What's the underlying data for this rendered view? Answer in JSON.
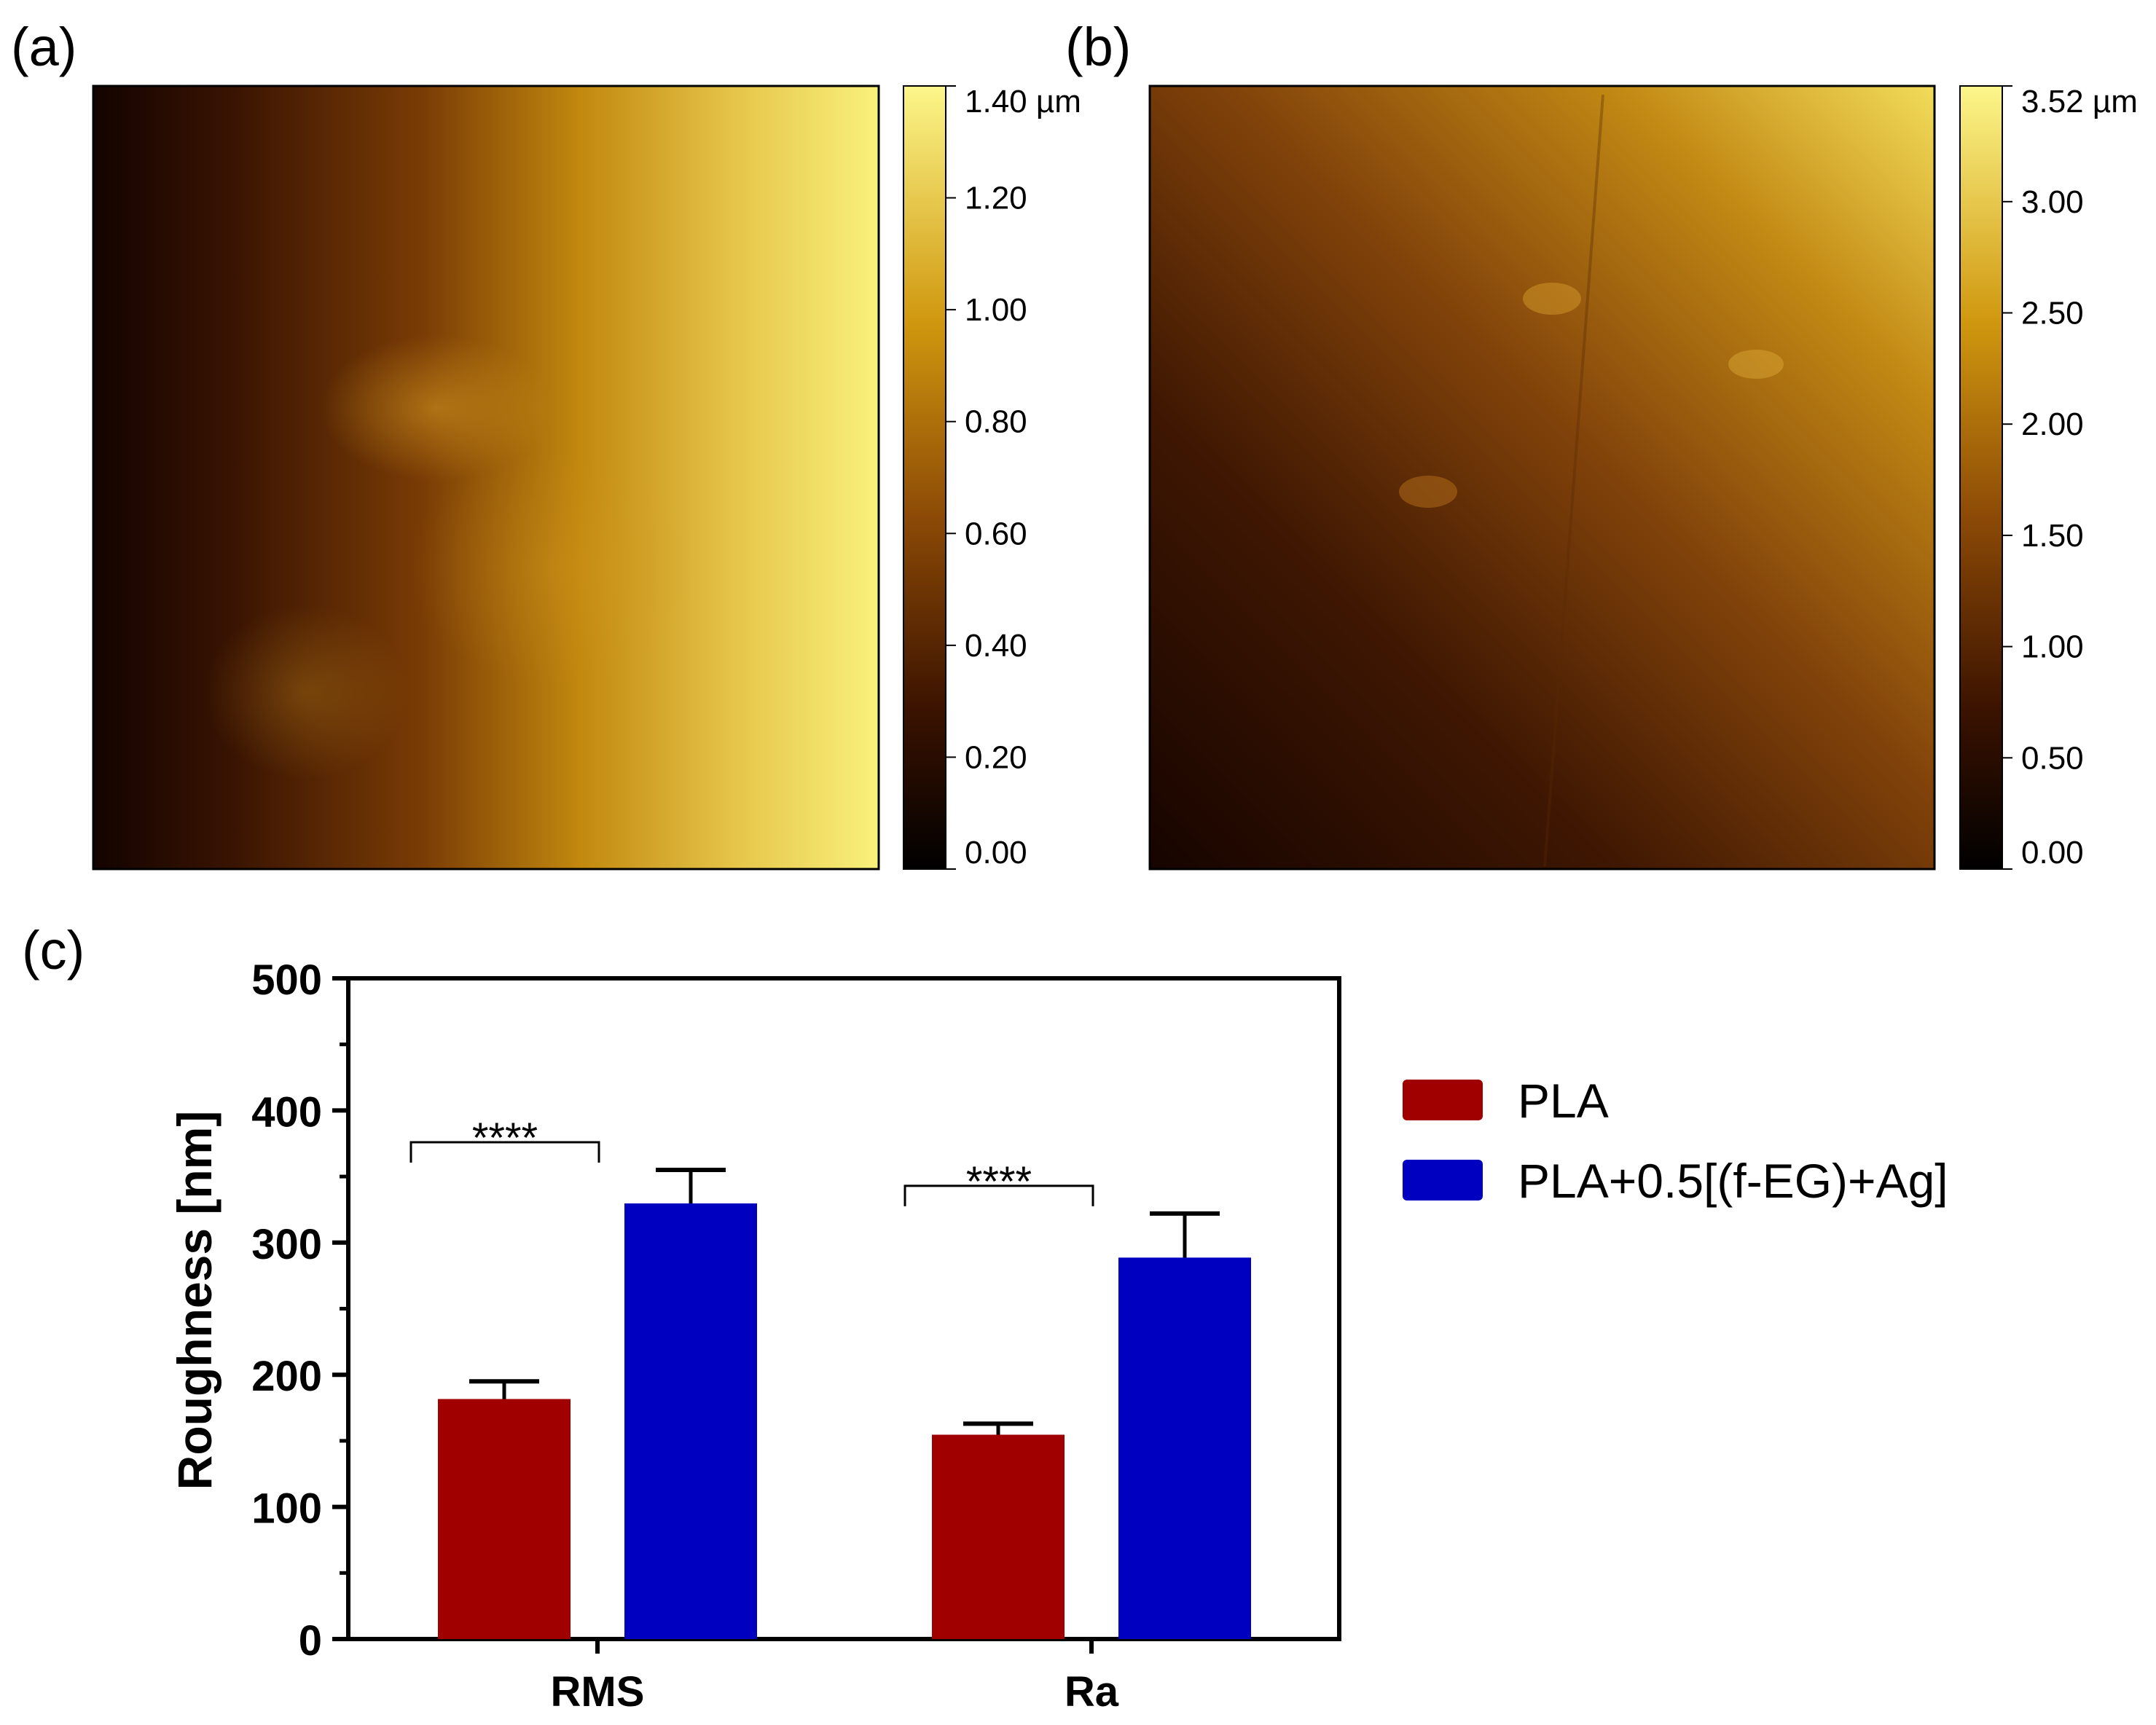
{
  "panels": {
    "a": {
      "label": "(a)",
      "colorbar_ticks": [
        "1.40 µm",
        "1.20",
        "1.00",
        "0.80",
        "0.60",
        "0.40",
        "0.20",
        "0.00"
      ],
      "colorbar_values": [
        1.4,
        1.2,
        1.0,
        0.8,
        0.6,
        0.4,
        0.2,
        0.0
      ],
      "colorbar_max": 1.4
    },
    "b": {
      "label": "(b)",
      "colorbar_ticks": [
        "3.52 µm",
        "3.00",
        "2.50",
        "2.00",
        "1.50",
        "1.00",
        "0.50",
        "0.00"
      ],
      "colorbar_values": [
        3.52,
        3.0,
        2.5,
        2.0,
        1.5,
        1.0,
        0.5,
        0.0
      ],
      "colorbar_max": 3.52
    },
    "c": {
      "label": "(c)"
    }
  },
  "colors": {
    "pla": "#a00000",
    "composite": "#0000c0",
    "afm_dark": "#140400",
    "afm_mid": "#b06a08",
    "afm_light": "#f8f07a"
  },
  "chart_data": {
    "type": "bar",
    "categories": [
      "RMS",
      "Ra"
    ],
    "series": [
      {
        "name": "PLA",
        "values": [
          180,
          153
        ],
        "errors": [
          15,
          10
        ]
      },
      {
        "name": "PLA+0.5[(f-EG)+Ag]",
        "values": [
          328,
          287
        ],
        "errors": [
          27,
          35
        ]
      }
    ],
    "ylabel": "Roughness [nm]",
    "xlabel": "",
    "ylim": [
      0,
      500
    ],
    "yticks": [
      0,
      100,
      200,
      300,
      400,
      500
    ],
    "significance": [
      "****",
      "****"
    ],
    "legend_position": "right",
    "grid": false
  }
}
